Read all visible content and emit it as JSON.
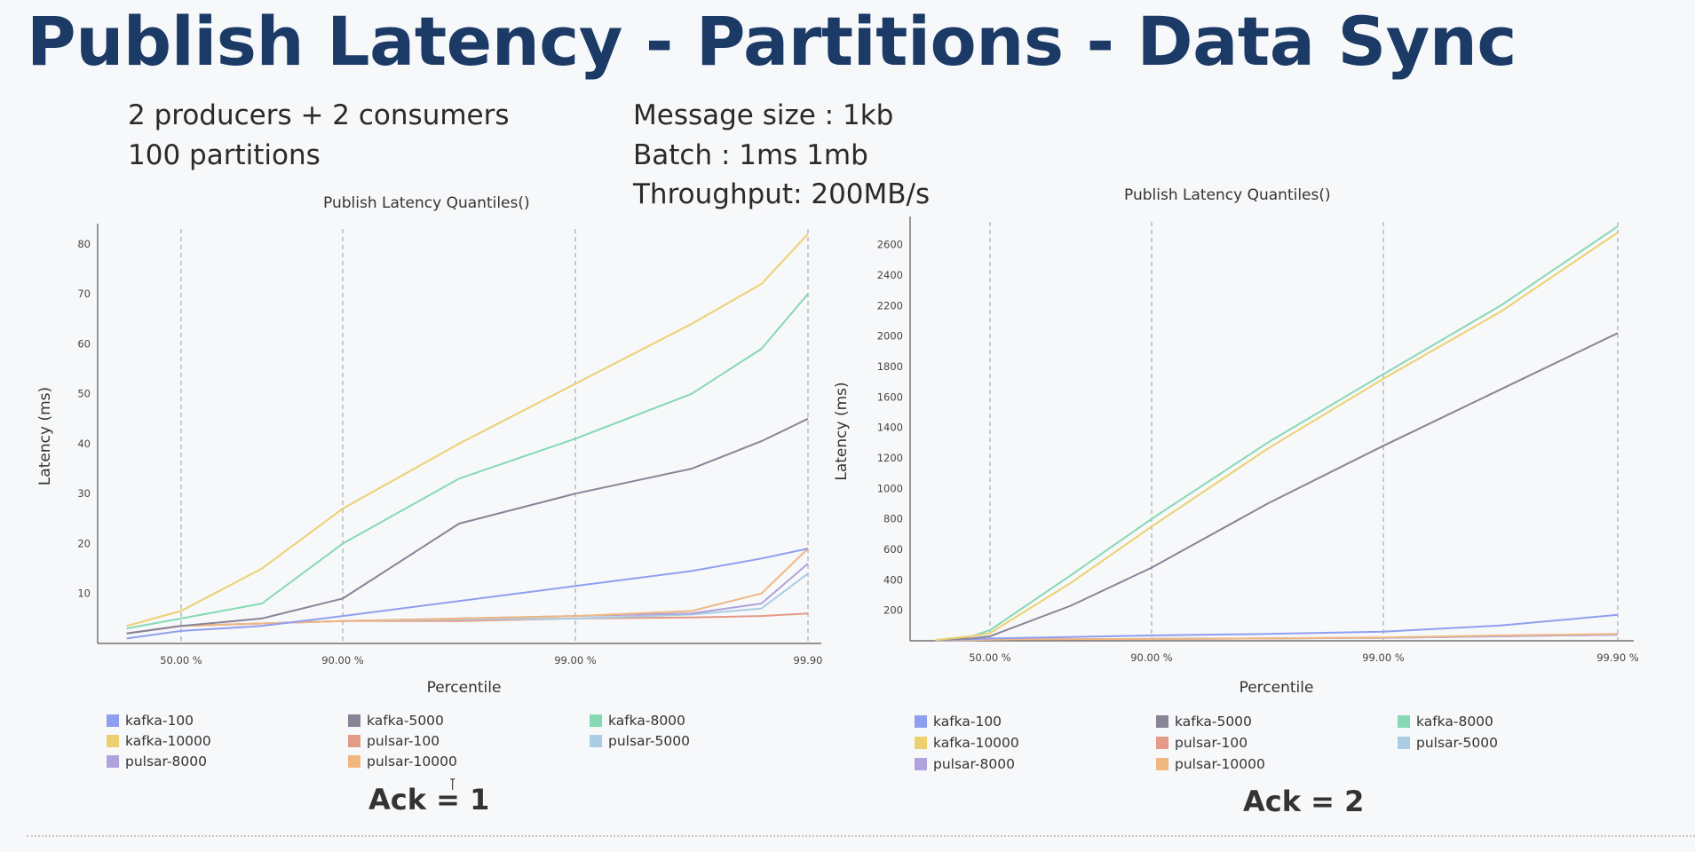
{
  "slide": {
    "title": "Publish Latency - Partitions - Data Sync",
    "info_left": [
      "2 producers + 2 consumers",
      "100 partitions"
    ],
    "info_right": [
      "Message size : 1kb",
      "Batch : 1ms 1mb",
      "Throughput: 200MB/s"
    ],
    "ack_left": "Ack = 1",
    "ack_right": "Ack = 2"
  },
  "colors": {
    "kafka-100": "#8f9ff0",
    "kafka-5000": "#8a8498",
    "kafka-8000": "#86d9b4",
    "kafka-10000": "#ecd070",
    "pulsar-100": "#e39a86",
    "pulsar-5000": "#a9cde2",
    "pulsar-8000": "#b0a2dc",
    "pulsar-10000": "#f1b781"
  },
  "chart_data": [
    {
      "type": "line",
      "title": "Publish Latency Quantiles()",
      "xlabel": "Percentile",
      "ylabel": "Latency (ms)",
      "xlim": [
        0,
        4.2
      ],
      "ylim": [
        0,
        83
      ],
      "x_ticks": [
        {
          "x": 1,
          "label": "50.00 %"
        },
        {
          "x": 2,
          "label": "90.00 %"
        },
        {
          "x": 3,
          "label": "99.00 %"
        },
        {
          "x": 4,
          "label": "99.90"
        }
      ],
      "y_ticks": [
        10,
        20,
        30,
        40,
        50,
        60,
        70,
        80
      ],
      "x": [
        0.25,
        1,
        1.5,
        2,
        2.5,
        3,
        3.5,
        3.8,
        4
      ],
      "series": [
        {
          "name": "kafka-100",
          "values": [
            1,
            2.5,
            3.5,
            5.5,
            8.5,
            11.5,
            14.5,
            17,
            19
          ]
        },
        {
          "name": "kafka-5000",
          "values": [
            2,
            3.5,
            5,
            9,
            24,
            30,
            35,
            40.5,
            45
          ]
        },
        {
          "name": "kafka-8000",
          "values": [
            3,
            5,
            8,
            20,
            33,
            41,
            50,
            59,
            70
          ]
        },
        {
          "name": "kafka-10000",
          "values": [
            3.5,
            6.5,
            15,
            27,
            40,
            52,
            64,
            72,
            82
          ]
        },
        {
          "name": "pulsar-100",
          "values": [
            2,
            3.5,
            4,
            4.5,
            4.5,
            5,
            5.2,
            5.5,
            6
          ]
        },
        {
          "name": "pulsar-5000",
          "values": [
            2,
            3.5,
            4,
            4.5,
            4.8,
            5,
            5.8,
            7,
            14
          ]
        },
        {
          "name": "pulsar-8000",
          "values": [
            2,
            3.5,
            4,
            4.5,
            5,
            5.5,
            6,
            8,
            16
          ]
        },
        {
          "name": "pulsar-10000",
          "values": [
            2,
            3.5,
            4,
            4.5,
            5,
            5.5,
            6.5,
            10,
            19
          ]
        }
      ],
      "legend": "bottom",
      "grid": "vertical dashed"
    },
    {
      "type": "line",
      "title": "Publish Latency Quantiles()",
      "xlabel": "Percentile",
      "ylabel": "Latency (ms)",
      "xlim": [
        0,
        4.2
      ],
      "ylim": [
        0,
        2750
      ],
      "x_ticks": [
        {
          "x": 1,
          "label": "50.00 %"
        },
        {
          "x": 2,
          "label": "90.00 %"
        },
        {
          "x": 3,
          "label": "99.00 %"
        },
        {
          "x": 4,
          "label": "99.90 %"
        }
      ],
      "y_ticks": [
        200,
        400,
        600,
        800,
        1000,
        1200,
        1400,
        1600,
        1800,
        2000,
        2200,
        2400,
        2600
      ],
      "x": [
        0.25,
        0.75,
        1,
        1.5,
        2,
        2.5,
        3,
        3.5,
        4
      ],
      "series": [
        {
          "name": "kafka-100",
          "values": [
            5,
            10,
            15,
            25,
            35,
            45,
            60,
            100,
            170
          ]
        },
        {
          "name": "kafka-5000",
          "values": [
            5,
            15,
            30,
            230,
            480,
            900,
            1280,
            1650,
            2020
          ]
        },
        {
          "name": "kafka-8000",
          "values": [
            5,
            30,
            70,
            430,
            800,
            1300,
            1750,
            2200,
            2720
          ]
        },
        {
          "name": "kafka-10000",
          "values": [
            5,
            30,
            50,
            380,
            750,
            1260,
            1720,
            2160,
            2680
          ]
        },
        {
          "name": "pulsar-100",
          "values": [
            5,
            5,
            8,
            10,
            12,
            15,
            20,
            30,
            40
          ]
        },
        {
          "name": "pulsar-5000",
          "values": [
            5,
            5,
            8,
            10,
            12,
            15,
            20,
            30,
            40
          ]
        },
        {
          "name": "pulsar-8000",
          "values": [
            5,
            5,
            8,
            10,
            12,
            15,
            20,
            30,
            40
          ]
        },
        {
          "name": "pulsar-10000",
          "values": [
            5,
            5,
            8,
            10,
            12,
            15,
            22,
            35,
            45
          ]
        }
      ],
      "legend": "bottom",
      "grid": "vertical dashed"
    }
  ],
  "legend_items": [
    "kafka-100",
    "kafka-5000",
    "kafka-8000",
    "kafka-10000",
    "pulsar-100",
    "pulsar-5000",
    "pulsar-8000",
    "pulsar-10000"
  ]
}
